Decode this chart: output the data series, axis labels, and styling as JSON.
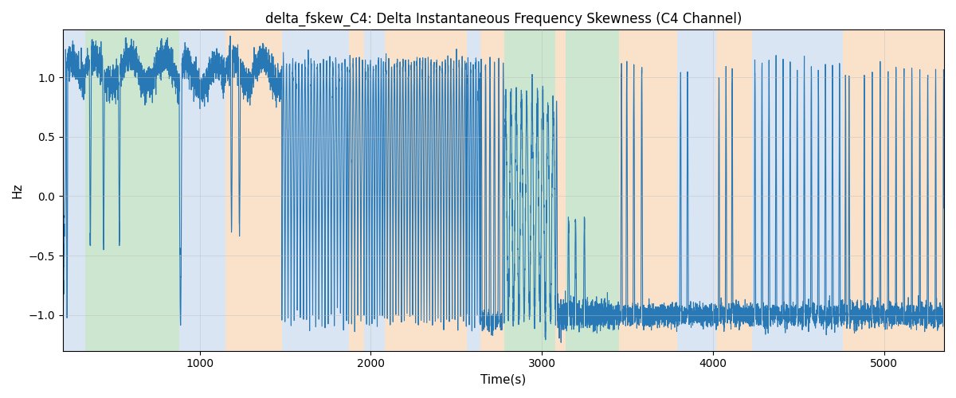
{
  "title": "delta_fskew_C4: Delta Instantaneous Frequency Skewness (C4 Channel)",
  "xlabel": "Time(s)",
  "ylabel": "Hz",
  "xlim": [
    200,
    5350
  ],
  "ylim": [
    -1.3,
    1.4
  ],
  "line_color": "#2878b5",
  "line_width": 0.8,
  "grid": true,
  "grid_color": "#bbbbbb",
  "grid_alpha": 0.6,
  "yticks": [
    -1.0,
    -0.5,
    0.0,
    0.5,
    1.0
  ],
  "xticks": [
    1000,
    2000,
    3000,
    4000,
    5000
  ],
  "bands": [
    {
      "xmin": 200,
      "xmax": 330,
      "color": "#aec6e8",
      "alpha": 0.45
    },
    {
      "xmin": 330,
      "xmax": 880,
      "color": "#90c896",
      "alpha": 0.45
    },
    {
      "xmin": 880,
      "xmax": 1150,
      "color": "#aec6e8",
      "alpha": 0.45
    },
    {
      "xmin": 1150,
      "xmax": 1480,
      "color": "#f5c08a",
      "alpha": 0.45
    },
    {
      "xmin": 1480,
      "xmax": 1870,
      "color": "#aec6e8",
      "alpha": 0.45
    },
    {
      "xmin": 1870,
      "xmax": 1960,
      "color": "#f5c08a",
      "alpha": 0.45
    },
    {
      "xmin": 1960,
      "xmax": 2080,
      "color": "#aec6e8",
      "alpha": 0.45
    },
    {
      "xmin": 2080,
      "xmax": 2560,
      "color": "#f5c08a",
      "alpha": 0.45
    },
    {
      "xmin": 2560,
      "xmax": 2640,
      "color": "#aec6e8",
      "alpha": 0.45
    },
    {
      "xmin": 2640,
      "xmax": 2780,
      "color": "#f5c08a",
      "alpha": 0.45
    },
    {
      "xmin": 2780,
      "xmax": 3080,
      "color": "#90c896",
      "alpha": 0.45
    },
    {
      "xmin": 3080,
      "xmax": 3140,
      "color": "#f5c08a",
      "alpha": 0.45
    },
    {
      "xmin": 3140,
      "xmax": 3450,
      "color": "#90c896",
      "alpha": 0.45
    },
    {
      "xmin": 3450,
      "xmax": 3790,
      "color": "#f5c08a",
      "alpha": 0.45
    },
    {
      "xmin": 3790,
      "xmax": 4020,
      "color": "#aec6e8",
      "alpha": 0.45
    },
    {
      "xmin": 4020,
      "xmax": 4230,
      "color": "#f5c08a",
      "alpha": 0.45
    },
    {
      "xmin": 4230,
      "xmax": 4760,
      "color": "#aec6e8",
      "alpha": 0.45
    },
    {
      "xmin": 4760,
      "xmax": 4870,
      "color": "#f5c08a",
      "alpha": 0.45
    },
    {
      "xmin": 4870,
      "xmax": 5350,
      "color": "#f5c08a",
      "alpha": 0.45
    }
  ],
  "seed": 42,
  "n_points": 10000,
  "x_start": 200,
  "x_end": 5350
}
